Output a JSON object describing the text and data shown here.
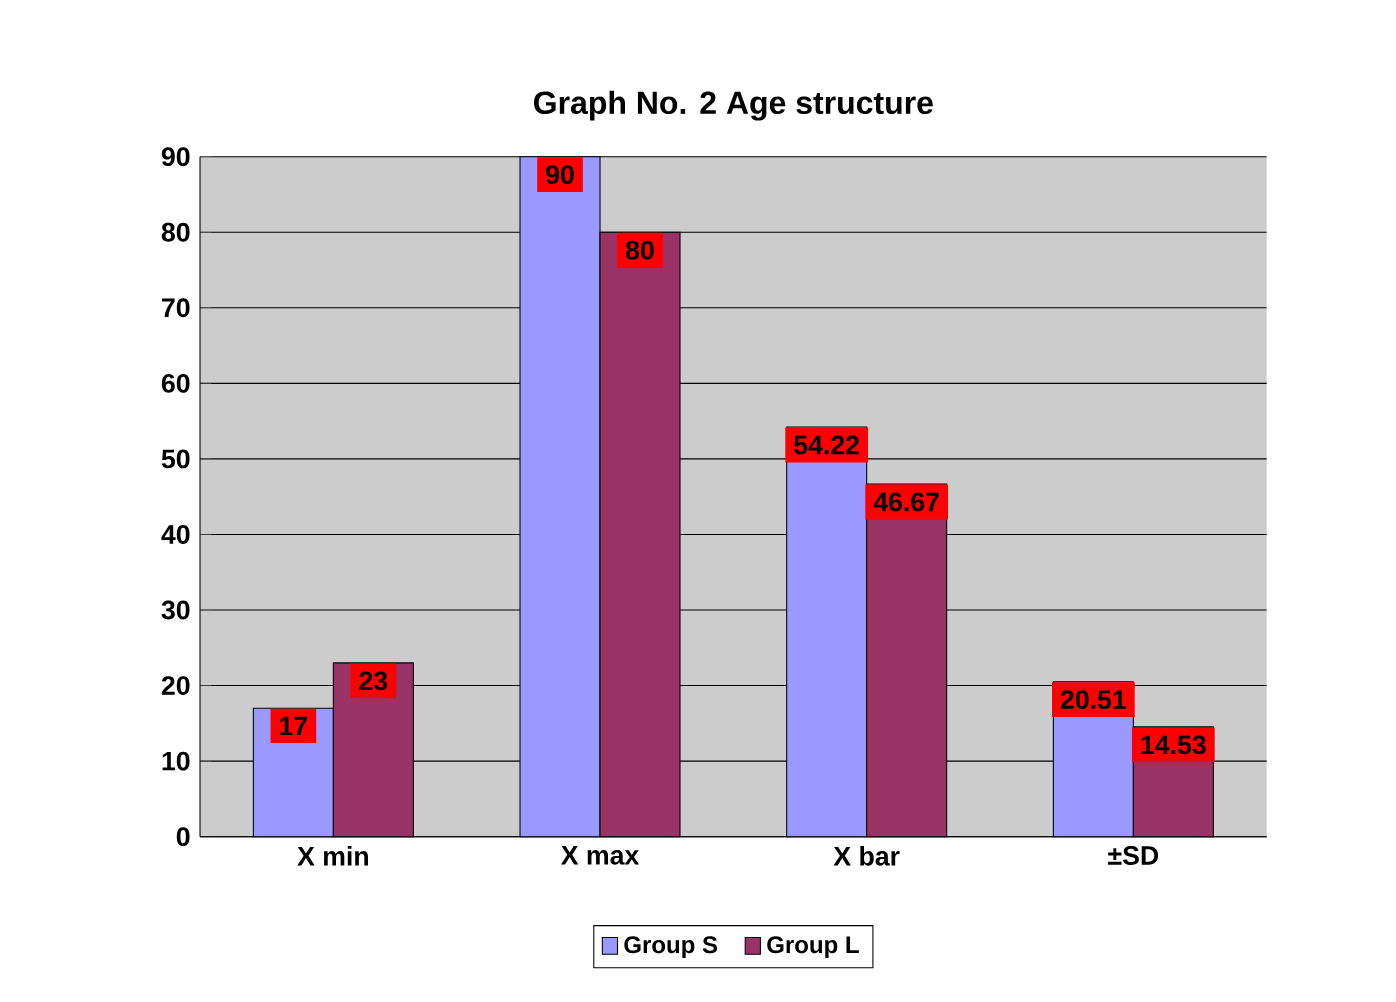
{
  "chart_data": {
    "type": "bar",
    "title": "Graph No. 2 Age structure",
    "categories": [
      "X min",
      "X max",
      "X bar",
      "±SD"
    ],
    "series": [
      {
        "name": "Group S",
        "color": "#9999ff",
        "values": [
          17,
          90,
          54.22,
          20.51
        ]
      },
      {
        "name": "Group L",
        "color": "#993366",
        "values": [
          23,
          80,
          46.67,
          14.53
        ]
      }
    ],
    "ylim": [
      0,
      90
    ],
    "yticks": [
      0,
      10,
      20,
      30,
      40,
      50,
      60,
      70,
      80,
      90
    ],
    "grid": "y",
    "legend": "bottom",
    "data_labels": true
  }
}
